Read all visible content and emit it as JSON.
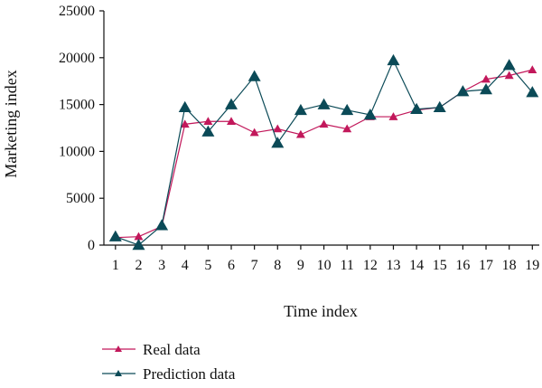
{
  "chart_data": {
    "type": "line",
    "title": "",
    "xlabel": "Time index",
    "ylabel": "Marketing index",
    "x": [
      1,
      2,
      3,
      4,
      5,
      6,
      7,
      8,
      9,
      10,
      11,
      12,
      13,
      14,
      15,
      16,
      17,
      18,
      19
    ],
    "xlim": [
      0.5,
      19.3
    ],
    "ylim": [
      0,
      25000
    ],
    "yticks": [
      0,
      5000,
      10000,
      15000,
      20000,
      25000
    ],
    "grid": false,
    "legend_position": "bottom-left",
    "series": [
      {
        "name": "Real data",
        "color": "#c2185b",
        "marker": "triangle",
        "values": [
          800,
          900,
          2000,
          12900,
          13200,
          13200,
          12000,
          12400,
          11800,
          12900,
          12400,
          13700,
          13700,
          14400,
          14700,
          16400,
          17700,
          18100,
          18700
        ]
      },
      {
        "name": "Prediction data",
        "color": "#0b4a57",
        "marker": "triangle",
        "values": [
          900,
          0,
          2100,
          14700,
          12100,
          15000,
          18000,
          10900,
          14400,
          15000,
          14400,
          13900,
          19700,
          14500,
          14700,
          16400,
          16600,
          19200,
          16300
        ]
      }
    ]
  }
}
